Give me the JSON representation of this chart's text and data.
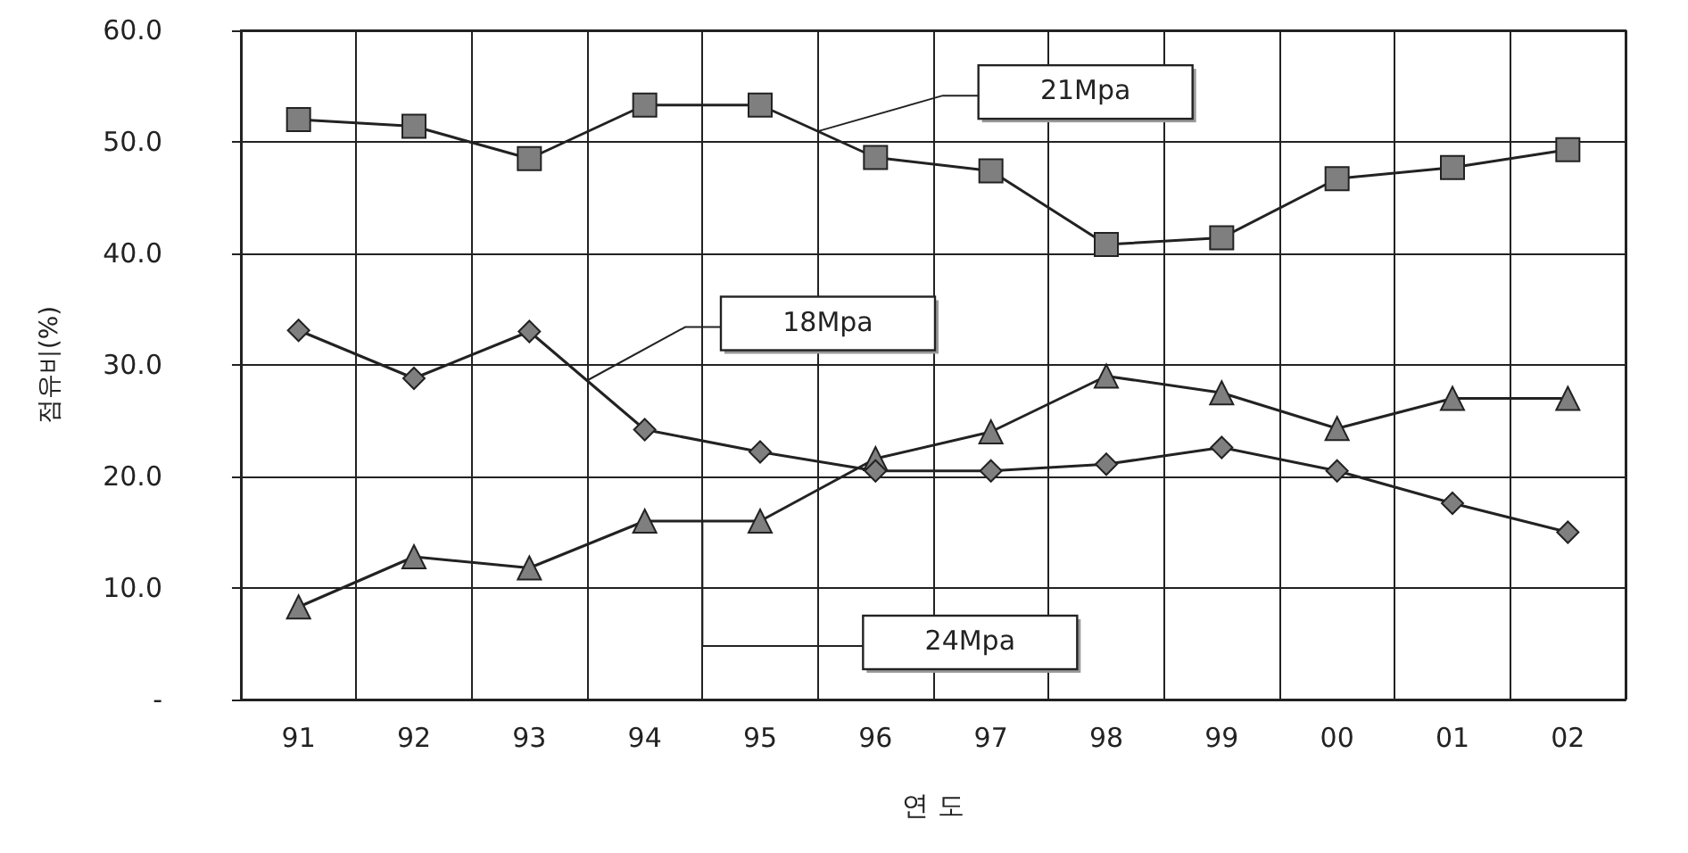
{
  "chart_data": {
    "type": "line",
    "xlabel": "연 도",
    "ylabel": "점유비(%)",
    "categories": [
      "91",
      "92",
      "93",
      "94",
      "95",
      "96",
      "97",
      "98",
      "99",
      "00",
      "01",
      "02"
    ],
    "series": [
      {
        "name": "21Mpa",
        "color": "#7f7f7f",
        "marker": "square",
        "values": [
          52.0,
          51.4,
          48.5,
          53.3,
          53.3,
          48.6,
          47.4,
          40.8,
          41.4,
          46.7,
          47.7,
          49.3
        ]
      },
      {
        "name": "18Mpa",
        "color": "#7f7f7f",
        "marker": "diamond",
        "values": [
          33.1,
          28.8,
          33.0,
          24.2,
          22.2,
          20.5,
          20.5,
          21.1,
          22.6,
          20.5,
          17.6,
          15.0
        ]
      },
      {
        "name": "24Mpa",
        "color": "#7f7f7f",
        "marker": "triangle",
        "values": [
          8.3,
          12.8,
          11.8,
          16.0,
          16.0,
          21.6,
          24.0,
          29.0,
          27.5,
          24.3,
          27.0,
          27.0
        ]
      }
    ],
    "ylim": [
      0,
      60
    ],
    "yticks": [
      {
        "value": 0,
        "label": "-"
      },
      {
        "value": 10,
        "label": "10.0"
      },
      {
        "value": 20,
        "label": "20.0"
      },
      {
        "value": 30,
        "label": "30.0"
      },
      {
        "value": 40,
        "label": "40.0"
      },
      {
        "value": 50,
        "label": "50.0"
      },
      {
        "value": 60,
        "label": "60.0"
      }
    ],
    "grid": true,
    "legend": false,
    "line_style": "solid"
  }
}
